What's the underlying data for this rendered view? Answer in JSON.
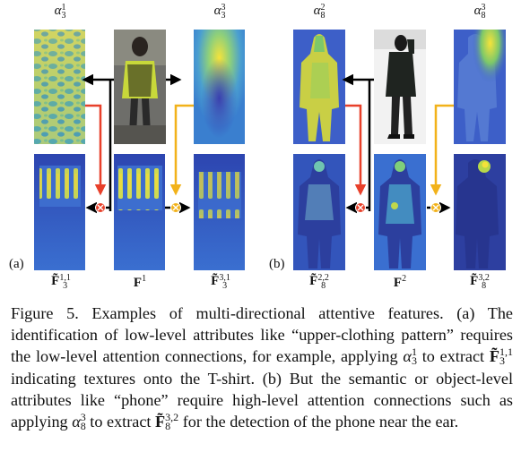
{
  "figure": {
    "left": {
      "panel_label": "(a)",
      "top_left_label": "α",
      "top_left_sub": "3",
      "top_left_sup": "1",
      "top_right_label": "α",
      "top_right_sub": "3",
      "top_right_sup": "3",
      "bottom_left_label": "F̃",
      "bottom_left_sub": "3",
      "bottom_left_sup": "1,1",
      "bottom_mid_label": "F",
      "bottom_mid_sup": "1",
      "bottom_right_label": "F̃",
      "bottom_right_sub": "3",
      "bottom_right_sup": "3,1"
    },
    "right": {
      "panel_label": "(b)",
      "top_left_label": "α",
      "top_left_sub": "8",
      "top_left_sup": "2",
      "top_right_label": "α",
      "top_right_sub": "8",
      "top_right_sup": "3",
      "bottom_left_label": "F̃",
      "bottom_left_sub": "8",
      "bottom_left_sup": "2,2",
      "bottom_mid_label": "F",
      "bottom_mid_sup": "2",
      "bottom_right_label": "F̃",
      "bottom_right_sub": "8",
      "bottom_right_sup": "3,2"
    },
    "colors": {
      "red_arrow": "#e8402a",
      "yellow_arrow": "#f2b21a",
      "black_arrow": "#000000",
      "heat_blue": "#2b3fa8",
      "heat_yellow": "#f6e33a"
    }
  },
  "caption": {
    "p1": "Figure 5.  Examples of multi-directional attentive features. (a) The identification of low-level attributes like “upper-clothing pattern” requires the low-level attention connections, for example, applying ",
    "alpha1_sub": "3",
    "alpha1_sup": "1",
    "p2": " to extract ",
    "f1_sub": "3",
    "f1_sup": "1,1",
    "p3": " indicating textures onto the T-shirt.  (b) But the semantic or object-level attributes like “phone” require high-level attention connections such as applying ",
    "alpha2_sub": "8",
    "alpha2_sup": "3",
    "p4": " to extract ",
    "f2_sub": "8",
    "f2_sup": "3,2",
    "p5": " for the detection of the phone near the ear."
  }
}
